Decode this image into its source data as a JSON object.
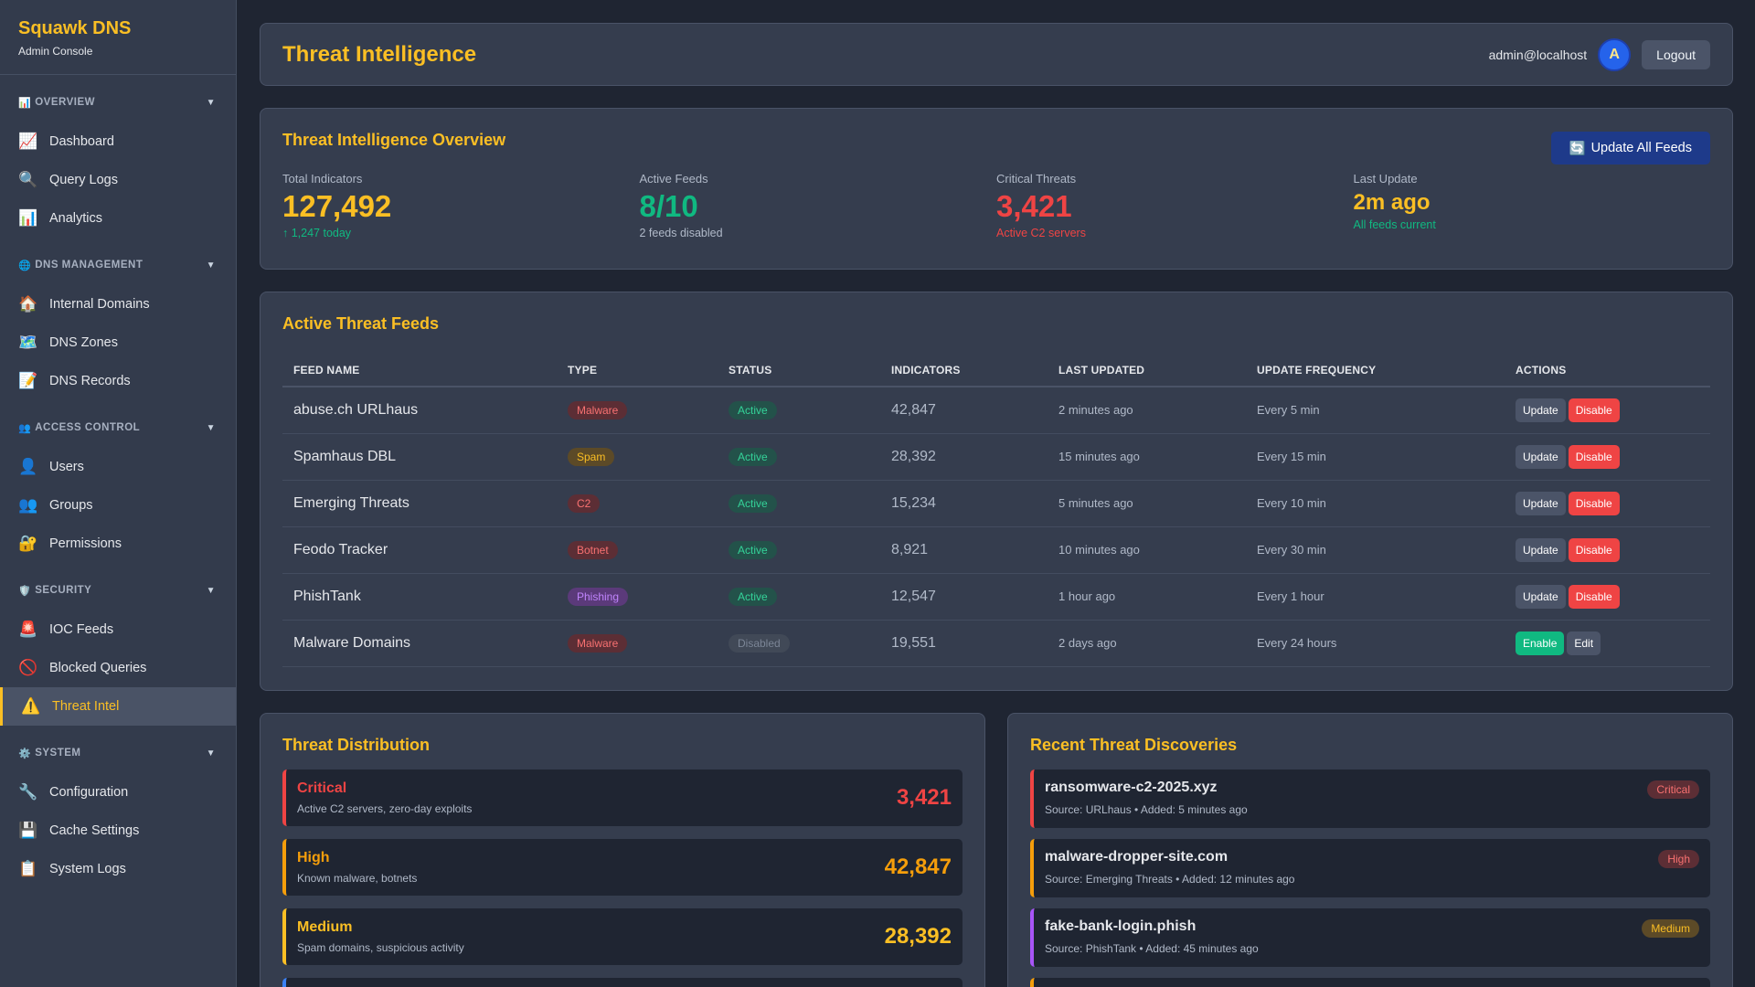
{
  "brand": {
    "title": "Squawk DNS",
    "subtitle": "Admin Console"
  },
  "sidebar": {
    "sections": [
      {
        "icon": "📊",
        "label": "OVERVIEW",
        "items": [
          {
            "icon": "📈",
            "label": "Dashboard"
          },
          {
            "icon": "🔍",
            "label": "Query Logs"
          },
          {
            "icon": "📊",
            "label": "Analytics"
          }
        ]
      },
      {
        "icon": "🌐",
        "label": "DNS MANAGEMENT",
        "items": [
          {
            "icon": "🏠",
            "label": "Internal Domains"
          },
          {
            "icon": "🗺️",
            "label": "DNS Zones"
          },
          {
            "icon": "📝",
            "label": "DNS Records"
          }
        ]
      },
      {
        "icon": "👥",
        "label": "ACCESS CONTROL",
        "items": [
          {
            "icon": "👤",
            "label": "Users"
          },
          {
            "icon": "👥",
            "label": "Groups"
          },
          {
            "icon": "🔐",
            "label": "Permissions"
          }
        ]
      },
      {
        "icon": "🛡️",
        "label": "SECURITY",
        "items": [
          {
            "icon": "🚨",
            "label": "IOC Feeds"
          },
          {
            "icon": "🚫",
            "label": "Blocked Queries"
          },
          {
            "icon": "⚠️",
            "label": "Threat Intel",
            "active": true
          }
        ]
      },
      {
        "icon": "⚙️",
        "label": "SYSTEM",
        "items": [
          {
            "icon": "🔧",
            "label": "Configuration"
          },
          {
            "icon": "💾",
            "label": "Cache Settings"
          },
          {
            "icon": "📋",
            "label": "System Logs"
          }
        ]
      }
    ],
    "chevron": "▼"
  },
  "header": {
    "title": "Threat Intelligence",
    "user_email": "admin@localhost",
    "avatar_letter": "A",
    "logout_label": "Logout"
  },
  "overview": {
    "title": "Threat Intelligence Overview",
    "update_all_label": "Update All Feeds",
    "update_all_icon": "🔄",
    "stats": [
      {
        "label": "Total Indicators",
        "value": "127,492",
        "sub": "↑ 1,247 today",
        "value_color": "#fbbf24",
        "sub_color": "#10b981"
      },
      {
        "label": "Active Feeds",
        "value": "8/10",
        "sub": "2 feeds disabled",
        "value_color": "#10b981",
        "sub_color": "#b0b9c8"
      },
      {
        "label": "Critical Threats",
        "value": "3,421",
        "sub": "Active C2 servers",
        "value_color": "#ef4444",
        "sub_color": "#ef4444"
      },
      {
        "label": "Last Update",
        "value": "2m ago",
        "sub": "All feeds current",
        "value_color": "#fbbf24",
        "sub_color": "#10b981",
        "small": true
      }
    ]
  },
  "feeds": {
    "title": "Active Threat Feeds",
    "columns": [
      "FEED NAME",
      "TYPE",
      "STATUS",
      "INDICATORS",
      "LAST UPDATED",
      "UPDATE FREQUENCY",
      "ACTIONS"
    ],
    "rows": [
      {
        "name": "abuse.ch URLhaus",
        "type": "Malware",
        "type_class": "b-malware",
        "status": "Active",
        "indicators": "42,847",
        "last_updated": "2 minutes ago",
        "frequency": "Every 5 min",
        "actions": [
          "Update",
          "Disable"
        ]
      },
      {
        "name": "Spamhaus DBL",
        "type": "Spam",
        "type_class": "b-spam",
        "status": "Active",
        "indicators": "28,392",
        "last_updated": "15 minutes ago",
        "frequency": "Every 15 min",
        "actions": [
          "Update",
          "Disable"
        ]
      },
      {
        "name": "Emerging Threats",
        "type": "C2",
        "type_class": "b-c2",
        "status": "Active",
        "indicators": "15,234",
        "last_updated": "5 minutes ago",
        "frequency": "Every 10 min",
        "actions": [
          "Update",
          "Disable"
        ]
      },
      {
        "name": "Feodo Tracker",
        "type": "Botnet",
        "type_class": "b-botnet",
        "status": "Active",
        "indicators": "8,921",
        "last_updated": "10 minutes ago",
        "frequency": "Every 30 min",
        "actions": [
          "Update",
          "Disable"
        ]
      },
      {
        "name": "PhishTank",
        "type": "Phishing",
        "type_class": "b-phishing",
        "status": "Active",
        "indicators": "12,547",
        "last_updated": "1 hour ago",
        "frequency": "Every 1 hour",
        "actions": [
          "Update",
          "Disable"
        ]
      },
      {
        "name": "Malware Domains",
        "type": "Malware",
        "type_class": "b-malware",
        "status": "Disabled",
        "indicators": "19,551",
        "last_updated": "2 days ago",
        "frequency": "Every 24 hours",
        "actions": [
          "Enable",
          "Edit"
        ]
      }
    ]
  },
  "distribution": {
    "title": "Threat Distribution",
    "items": [
      {
        "name": "Critical",
        "desc": "Active C2 servers, zero-day exploits",
        "count": "3,421",
        "color": "#ef4444"
      },
      {
        "name": "High",
        "desc": "Known malware, botnets",
        "count": "42,847",
        "color": "#f59e0b"
      },
      {
        "name": "Medium",
        "desc": "Spam domains, suspicious activity",
        "count": "28,392",
        "color": "#fbbf24"
      },
      {
        "name": "",
        "desc": "",
        "count": "",
        "color": "#3b82f6"
      }
    ]
  },
  "discoveries": {
    "title": "Recent Threat Discoveries",
    "items": [
      {
        "domain": "ransomware-c2-2025.xyz",
        "meta": "Source: URLhaus • Added: 5 minutes ago",
        "severity": "Critical",
        "sev_class": "sev-critical",
        "color": "#ef4444"
      },
      {
        "domain": "malware-dropper-site.com",
        "meta": "Source: Emerging Threats • Added: 12 minutes ago",
        "severity": "High",
        "sev_class": "sev-high",
        "color": "#f59e0b"
      },
      {
        "domain": "fake-bank-login.phish",
        "meta": "Source: PhishTank • Added: 45 minutes ago",
        "severity": "Medium",
        "sev_class": "sev-medium",
        "color": "#a855f7"
      },
      {
        "domain": "",
        "meta": "",
        "severity": "",
        "sev_class": "",
        "color": "#f59e0b"
      }
    ]
  }
}
